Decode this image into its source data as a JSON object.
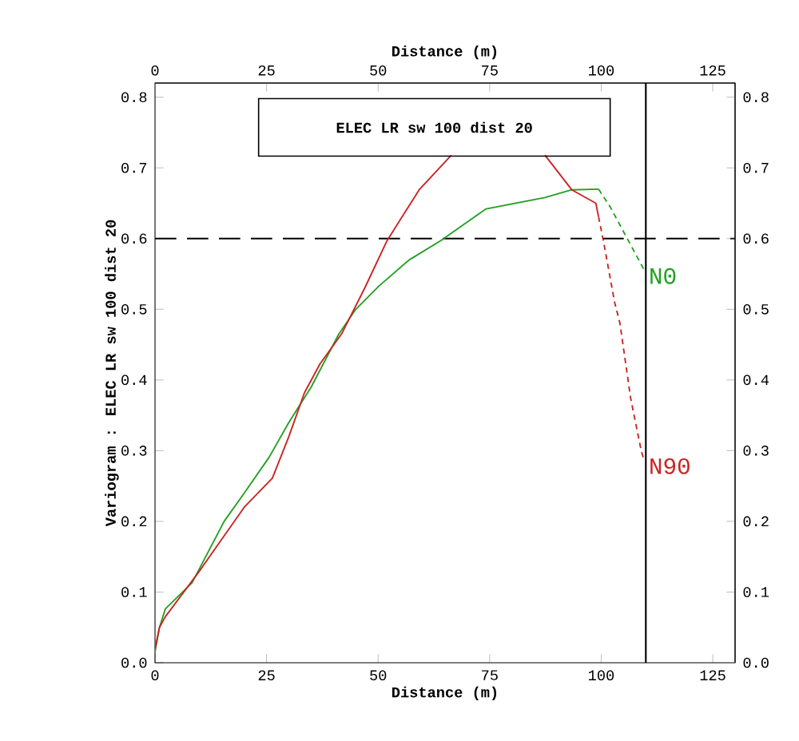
{
  "chart_data": {
    "type": "line",
    "xlabel": "Distance (m)",
    "x2label": "Distance (m)",
    "ylabel": "Variogram : ELEC LR sw 100 dist 20",
    "annotations": [
      "ELEC LR sw 100 dist 20"
    ],
    "xlim": [
      0,
      130
    ],
    "xticks": [
      0,
      25,
      50,
      75,
      100,
      125
    ],
    "x2lim": [
      0,
      130
    ],
    "x2ticks": [
      0,
      25,
      50,
      75,
      100,
      125
    ],
    "ylim": [
      0,
      0.82
    ],
    "yticks": [
      {
        "value": 0,
        "label": "0.0"
      },
      0.1,
      0.2,
      0.3,
      0.4,
      0.5,
      0.6,
      0.7,
      0.8
    ],
    "y2lim": [
      0,
      0.82
    ],
    "y2ticks": [
      {
        "value": 0,
        "label": "0.0"
      },
      0.1,
      0.2,
      0.3,
      0.4,
      0.5,
      0.6,
      0.7,
      0.8
    ],
    "series": [
      {
        "color": "#22a022",
        "line_style": "solid",
        "x": [
          0,
          1,
          2.3,
          8.3,
          15.5,
          20,
          25.6,
          30,
          35,
          41.2,
          45,
          50.2,
          57,
          64,
          74.2,
          87.4,
          93.4,
          99.4
        ],
        "values": [
          0.015,
          0.05,
          0.076,
          0.113,
          0.2,
          0.24,
          0.291,
          0.34,
          0.39,
          0.465,
          0.5,
          0.533,
          0.57,
          0.597,
          0.642,
          0.658,
          0.669,
          0.67
        ]
      },
      {
        "name": "N0",
        "color": "#22a022",
        "line_style": "dotted",
        "x": [
          99.4,
          102,
          105.4,
          109.6
        ],
        "values": [
          0.67,
          0.645,
          0.605,
          0.556
        ]
      },
      {
        "color": "#cc2222",
        "line_style": "solid",
        "x": [
          0,
          1,
          2.3,
          10,
          20,
          26.3,
          30,
          33.5,
          37,
          41.8,
          47,
          52,
          59.2,
          66.4,
          77,
          87.4,
          93.4,
          98.8,
          99.4
        ],
        "values": [
          0.02,
          0.05,
          0.065,
          0.13,
          0.22,
          0.261,
          0.32,
          0.382,
          0.423,
          0.465,
          0.53,
          0.597,
          0.669,
          0.718,
          null,
          0.718,
          0.669,
          0.65,
          0.631
        ]
      },
      {
        "name": "N90",
        "color": "#cc2222",
        "line_style": "dotted",
        "x": [
          99.4,
          100.6,
          103,
          104.2,
          106.6,
          109,
          109.6
        ],
        "values": [
          0.631,
          0.593,
          0.51,
          0.48,
          0.374,
          0.299,
          0.287
        ]
      }
    ],
    "ref_lines": [
      {
        "axis": "y",
        "value": 0.6,
        "line_style": "dashed",
        "color": "#000000"
      },
      {
        "axis": "x",
        "value": 110,
        "line_style": "solid",
        "color": "#000000"
      }
    ]
  }
}
